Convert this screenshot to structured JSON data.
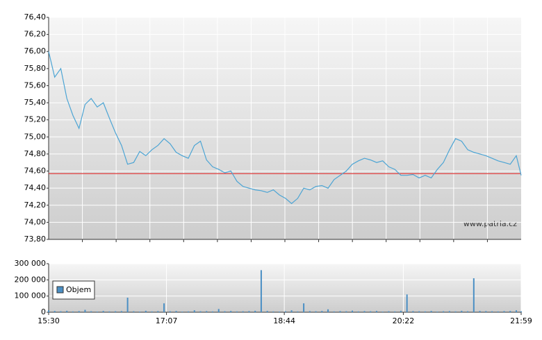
{
  "chart_data": [
    {
      "type": "line",
      "annotation": "www.patria.cz",
      "x": [
        "15:30",
        "15:35",
        "15:40",
        "15:45",
        "15:50",
        "15:55",
        "16:00",
        "16:05",
        "16:10",
        "16:15",
        "16:20",
        "16:25",
        "16:30",
        "16:35",
        "16:40",
        "16:45",
        "16:50",
        "16:55",
        "17:00",
        "17:05",
        "17:10",
        "17:15",
        "17:20",
        "17:25",
        "17:30",
        "17:35",
        "17:40",
        "17:45",
        "17:50",
        "17:55",
        "18:00",
        "18:05",
        "18:10",
        "18:15",
        "18:20",
        "18:25",
        "18:30",
        "18:35",
        "18:40",
        "18:45",
        "18:50",
        "18:55",
        "19:00",
        "19:05",
        "19:10",
        "19:15",
        "19:20",
        "19:25",
        "19:30",
        "19:35",
        "19:40",
        "19:45",
        "19:50",
        "19:55",
        "20:00",
        "20:05",
        "20:10",
        "20:15",
        "20:20",
        "20:25",
        "20:30",
        "20:35",
        "20:40",
        "20:45",
        "20:50",
        "20:55",
        "21:00",
        "21:05",
        "21:10",
        "21:15",
        "21:20",
        "21:25",
        "21:30",
        "21:35",
        "21:40",
        "21:45",
        "21:50",
        "21:55",
        "21:59"
      ],
      "xlim": [
        "15:30",
        "21:59"
      ],
      "series": [
        {
          "color": "#4ba4d4",
          "values": [
            76.0,
            75.7,
            75.8,
            75.45,
            75.25,
            75.1,
            75.38,
            75.45,
            75.35,
            75.4,
            75.22,
            75.05,
            74.9,
            74.68,
            74.7,
            74.83,
            74.78,
            74.85,
            74.9,
            74.98,
            74.92,
            74.82,
            74.78,
            74.75,
            74.9,
            74.95,
            74.73,
            74.65,
            74.62,
            74.58,
            74.6,
            74.48,
            74.42,
            74.4,
            74.38,
            74.37,
            74.35,
            74.38,
            74.32,
            74.28,
            74.22,
            74.28,
            74.4,
            74.38,
            74.42,
            74.43,
            74.4,
            74.5,
            74.55,
            74.6,
            74.68,
            74.72,
            74.75,
            74.73,
            74.7,
            74.72,
            74.65,
            74.62,
            74.55,
            74.55,
            74.56,
            74.52,
            74.55,
            74.52,
            74.62,
            74.7,
            74.85,
            74.98,
            74.95,
            74.85,
            74.82,
            74.8,
            74.78,
            74.75,
            74.72,
            74.7,
            74.68,
            74.78,
            74.55
          ]
        }
      ],
      "reference_line": {
        "value": 74.57,
        "color": "#e03c3c"
      },
      "ylim": [
        73.8,
        76.4
      ],
      "yticks": [
        {
          "value": 73.8,
          "label": "73,80"
        },
        {
          "value": 74.0,
          "label": "74,00"
        },
        {
          "value": 74.2,
          "label": "74,20"
        },
        {
          "value": 74.4,
          "label": "74,40"
        },
        {
          "value": 74.6,
          "label": "74,60"
        },
        {
          "value": 74.8,
          "label": "74,80"
        },
        {
          "value": 75.0,
          "label": "75,00"
        },
        {
          "value": 75.2,
          "label": "75,20"
        },
        {
          "value": 75.4,
          "label": "75,40"
        },
        {
          "value": 75.6,
          "label": "75,60"
        },
        {
          "value": 75.8,
          "label": "75,80"
        },
        {
          "value": 76.0,
          "label": "76,00"
        },
        {
          "value": 76.2,
          "label": "76,20"
        },
        {
          "value": 76.4,
          "label": "76,40"
        }
      ],
      "grid": true
    },
    {
      "type": "bar",
      "x": [
        "15:30",
        "15:35",
        "15:40",
        "15:45",
        "15:50",
        "15:55",
        "16:00",
        "16:05",
        "16:10",
        "16:15",
        "16:20",
        "16:25",
        "16:30",
        "16:35",
        "16:40",
        "16:45",
        "16:50",
        "16:55",
        "17:00",
        "17:05",
        "17:10",
        "17:15",
        "17:20",
        "17:25",
        "17:30",
        "17:35",
        "17:40",
        "17:45",
        "17:50",
        "17:55",
        "18:00",
        "18:05",
        "18:10",
        "18:15",
        "18:20",
        "18:25",
        "18:30",
        "18:35",
        "18:40",
        "18:45",
        "18:50",
        "18:55",
        "19:00",
        "19:05",
        "19:10",
        "19:15",
        "19:20",
        "19:25",
        "19:30",
        "19:35",
        "19:40",
        "19:45",
        "19:50",
        "19:55",
        "20:00",
        "20:05",
        "20:10",
        "20:15",
        "20:20",
        "20:25",
        "20:30",
        "20:35",
        "20:40",
        "20:45",
        "20:50",
        "20:55",
        "21:00",
        "21:05",
        "21:10",
        "21:15",
        "21:20",
        "21:25",
        "21:30",
        "21:35",
        "21:40",
        "21:45",
        "21:50",
        "21:55",
        "21:59"
      ],
      "xlim": [
        "15:30",
        "21:59"
      ],
      "xticks": [
        "15:30",
        "17:07",
        "18:44",
        "20:22",
        "21:59"
      ],
      "series": [
        {
          "name": "Objem",
          "color": "#4a8fc4",
          "values": [
            12000,
            8000,
            6000,
            9000,
            5000,
            7000,
            15000,
            6000,
            4000,
            8000,
            5000,
            6000,
            7000,
            90000,
            6000,
            4000,
            9000,
            5000,
            7000,
            55000,
            6000,
            8000,
            4000,
            5000,
            12000,
            6000,
            7000,
            5000,
            20000,
            6000,
            8000,
            5000,
            6000,
            7000,
            9000,
            260000,
            8000,
            5000,
            4000,
            6000,
            12000,
            5000,
            55000,
            7000,
            6000,
            8000,
            18000,
            5000,
            7000,
            6000,
            10000,
            5000,
            7000,
            6000,
            8000,
            4000,
            6000,
            5000,
            9000,
            110000,
            7000,
            6000,
            5000,
            8000,
            4000,
            6000,
            7000,
            5000,
            9000,
            6000,
            210000,
            8000,
            7000,
            6000,
            5000,
            7000,
            8000,
            12000,
            6000
          ]
        }
      ],
      "ylim": [
        0,
        300000
      ],
      "yticks": [
        0,
        {
          "value": 100000,
          "label": "100 000"
        },
        {
          "value": 200000,
          "label": "200 000"
        },
        {
          "value": 300000,
          "label": "300 000"
        }
      ],
      "grid": true
    }
  ]
}
